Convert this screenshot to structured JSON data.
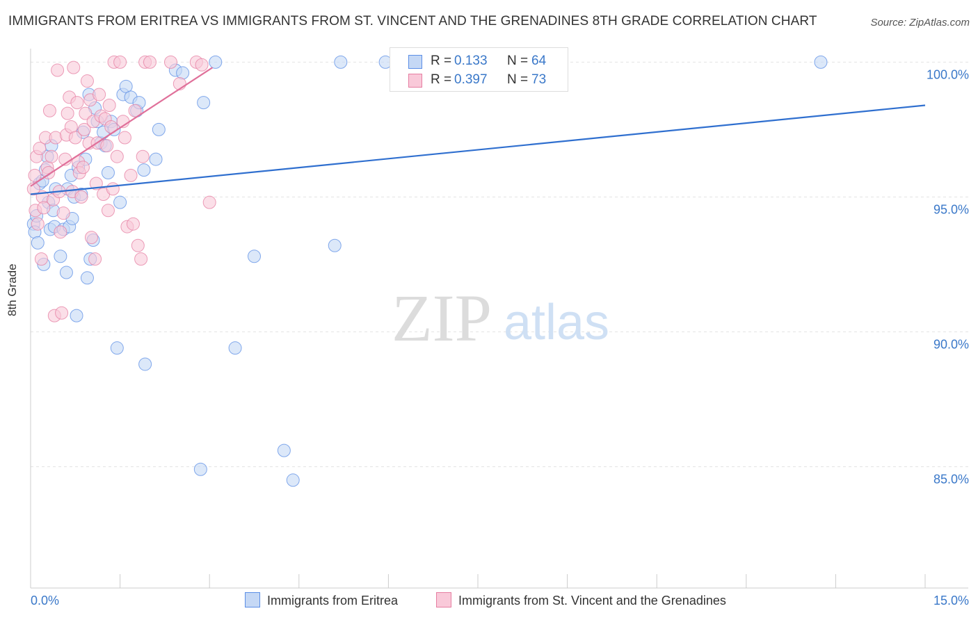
{
  "title": "IMMIGRANTS FROM ERITREA VS IMMIGRANTS FROM ST. VINCENT AND THE GRENADINES 8TH GRADE CORRELATION CHART",
  "source": "Source: ZipAtlas.com",
  "watermark": {
    "zip": "ZIP",
    "atlas": "atlas"
  },
  "legend": {
    "r_label": "R =",
    "n_label": "N =",
    "rows": [
      {
        "r": "0.133",
        "n": "64",
        "color": "#5b8ee6",
        "fill": "#c5d8f5"
      },
      {
        "r": "0.397",
        "n": "73",
        "color": "#e67ea1",
        "fill": "#f9c9d9"
      }
    ]
  },
  "chart_data": {
    "type": "scatter",
    "title": "IMMIGRANTS FROM ERITREA VS IMMIGRANTS FROM ST. VINCENT AND THE GRENADINES 8TH GRADE CORRELATION CHART",
    "xlabel": "",
    "ylabel": "8th Grade",
    "xlim": [
      0,
      15
    ],
    "ylim": [
      80.5,
      100.5
    ],
    "x_tick_labels": [
      "0.0%",
      "15.0%"
    ],
    "y_ticks": [
      85,
      90,
      95,
      100
    ],
    "y_tick_labels": [
      "85.0%",
      "90.0%",
      "95.0%",
      "100.0%"
    ],
    "grid": true,
    "legend_position": "top-center",
    "series": [
      {
        "name": "Immigrants from Eritrea",
        "color": "#5b8ee6",
        "fill": "#c5d8f5",
        "trend": {
          "x": [
            0.0,
            15.0
          ],
          "y": [
            95.1,
            98.4
          ]
        },
        "points": [
          [
            0.05,
            94.0
          ],
          [
            0.07,
            93.7
          ],
          [
            0.1,
            94.3
          ],
          [
            0.12,
            93.3
          ],
          [
            0.15,
            95.5
          ],
          [
            0.2,
            95.6
          ],
          [
            0.22,
            92.5
          ],
          [
            0.25,
            96.0
          ],
          [
            0.28,
            96.5
          ],
          [
            0.3,
            94.8
          ],
          [
            0.33,
            93.8
          ],
          [
            0.35,
            96.9
          ],
          [
            0.38,
            94.5
          ],
          [
            0.4,
            93.9
          ],
          [
            0.42,
            95.3
          ],
          [
            0.5,
            92.8
          ],
          [
            0.55,
            93.8
          ],
          [
            0.6,
            92.2
          ],
          [
            0.62,
            95.3
          ],
          [
            0.65,
            93.9
          ],
          [
            0.68,
            95.8
          ],
          [
            0.7,
            94.2
          ],
          [
            0.73,
            95.0
          ],
          [
            0.77,
            90.6
          ],
          [
            0.8,
            96.1
          ],
          [
            0.85,
            95.1
          ],
          [
            0.88,
            97.4
          ],
          [
            0.92,
            96.4
          ],
          [
            0.95,
            92.0
          ],
          [
            0.98,
            98.8
          ],
          [
            1.0,
            92.7
          ],
          [
            1.05,
            93.4
          ],
          [
            1.08,
            98.3
          ],
          [
            1.12,
            97.8
          ],
          [
            1.18,
            97.0
          ],
          [
            1.22,
            97.4
          ],
          [
            1.25,
            96.9
          ],
          [
            1.3,
            95.9
          ],
          [
            1.35,
            97.8
          ],
          [
            1.4,
            97.5
          ],
          [
            1.45,
            89.4
          ],
          [
            1.5,
            94.8
          ],
          [
            1.55,
            98.8
          ],
          [
            1.6,
            99.1
          ],
          [
            1.68,
            98.7
          ],
          [
            1.78,
            98.2
          ],
          [
            1.82,
            98.5
          ],
          [
            1.9,
            96.0
          ],
          [
            1.92,
            88.8
          ],
          [
            2.1,
            96.4
          ],
          [
            2.15,
            97.5
          ],
          [
            2.43,
            99.7
          ],
          [
            2.55,
            99.6
          ],
          [
            2.85,
            84.9
          ],
          [
            2.9,
            98.5
          ],
          [
            3.1,
            100.0
          ],
          [
            3.43,
            89.4
          ],
          [
            3.75,
            92.8
          ],
          [
            4.25,
            85.6
          ],
          [
            4.4,
            84.5
          ],
          [
            5.1,
            93.2
          ],
          [
            5.2,
            100.0
          ],
          [
            5.95,
            100.0
          ],
          [
            13.25,
            100.0
          ]
        ]
      },
      {
        "name": "Immigrants from St. Vincent and the Grenadines",
        "color": "#e67ea1",
        "fill": "#f9c9d9",
        "trend": {
          "x": [
            0.0,
            3.05
          ],
          "y": [
            95.4,
            99.8
          ]
        },
        "points": [
          [
            0.05,
            95.3
          ],
          [
            0.07,
            95.8
          ],
          [
            0.08,
            94.5
          ],
          [
            0.1,
            96.5
          ],
          [
            0.12,
            94.0
          ],
          [
            0.15,
            96.8
          ],
          [
            0.18,
            92.7
          ],
          [
            0.2,
            95.0
          ],
          [
            0.22,
            94.6
          ],
          [
            0.25,
            97.2
          ],
          [
            0.28,
            96.1
          ],
          [
            0.3,
            95.9
          ],
          [
            0.32,
            98.2
          ],
          [
            0.35,
            96.5
          ],
          [
            0.38,
            94.9
          ],
          [
            0.4,
            90.6
          ],
          [
            0.42,
            97.2
          ],
          [
            0.45,
            99.7
          ],
          [
            0.48,
            95.2
          ],
          [
            0.5,
            93.7
          ],
          [
            0.52,
            90.7
          ],
          [
            0.55,
            94.4
          ],
          [
            0.58,
            96.4
          ],
          [
            0.6,
            97.3
          ],
          [
            0.62,
            98.1
          ],
          [
            0.65,
            98.7
          ],
          [
            0.68,
            97.6
          ],
          [
            0.7,
            95.2
          ],
          [
            0.72,
            99.8
          ],
          [
            0.75,
            97.2
          ],
          [
            0.78,
            98.5
          ],
          [
            0.8,
            96.3
          ],
          [
            0.82,
            95.9
          ],
          [
            0.85,
            95.0
          ],
          [
            0.88,
            96.1
          ],
          [
            0.9,
            97.5
          ],
          [
            0.92,
            98.1
          ],
          [
            0.95,
            99.3
          ],
          [
            0.98,
            97.0
          ],
          [
            1.0,
            98.6
          ],
          [
            1.02,
            93.5
          ],
          [
            1.05,
            97.8
          ],
          [
            1.08,
            92.7
          ],
          [
            1.1,
            95.5
          ],
          [
            1.12,
            97.0
          ],
          [
            1.15,
            98.8
          ],
          [
            1.18,
            98.0
          ],
          [
            1.22,
            95.1
          ],
          [
            1.25,
            97.9
          ],
          [
            1.28,
            96.9
          ],
          [
            1.3,
            94.5
          ],
          [
            1.32,
            98.4
          ],
          [
            1.35,
            97.6
          ],
          [
            1.38,
            95.3
          ],
          [
            1.4,
            100.0
          ],
          [
            1.45,
            96.5
          ],
          [
            1.5,
            100.0
          ],
          [
            1.55,
            97.8
          ],
          [
            1.58,
            97.2
          ],
          [
            1.62,
            93.9
          ],
          [
            1.68,
            95.8
          ],
          [
            1.72,
            94.0
          ],
          [
            1.75,
            98.2
          ],
          [
            1.8,
            93.2
          ],
          [
            1.85,
            92.7
          ],
          [
            1.88,
            96.5
          ],
          [
            1.92,
            100.0
          ],
          [
            2.0,
            100.0
          ],
          [
            2.35,
            100.0
          ],
          [
            2.5,
            99.2
          ],
          [
            2.78,
            100.0
          ],
          [
            2.87,
            99.9
          ],
          [
            3.0,
            94.8
          ]
        ]
      }
    ]
  }
}
